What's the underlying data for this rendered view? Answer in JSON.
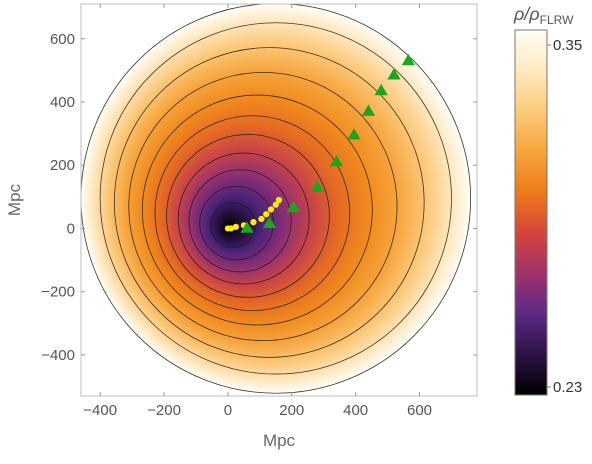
{
  "chart_data": {
    "type": "heatmap",
    "xlabel": "Mpc",
    "ylabel": "Mpc",
    "xlim": [
      -460,
      780
    ],
    "ylim": [
      -530,
      710
    ],
    "x_ticks": [
      -400,
      -200,
      0,
      200,
      400,
      600
    ],
    "x_tick_labels": [
      "−400",
      "−200",
      "0",
      "200",
      "400",
      "600"
    ],
    "y_ticks": [
      -400,
      -200,
      0,
      200,
      400,
      600
    ],
    "y_tick_labels": [
      "−400",
      "−200",
      "0",
      "200",
      "400",
      "600"
    ],
    "colorbar": {
      "title_main": "ρ/ρ",
      "title_sub": "FLRW",
      "min": 0.23,
      "max": 0.35,
      "min_label": "0.23",
      "max_label": "0.35"
    },
    "density_field": {
      "outer_center": [
        150,
        95
      ],
      "outer_radius": 610,
      "void_center": [
        0,
        0
      ],
      "contour_radii": [
        35,
        70,
        115,
        160,
        205,
        255,
        305,
        360,
        420,
        485,
        550
      ],
      "contour_centers_shift": 0.18,
      "colormap": [
        "#000000",
        "#2e1246",
        "#5b2a86",
        "#a0326b",
        "#d6453a",
        "#ee7a1a",
        "#f6a43c",
        "#fbcb7a",
        "#fee9c0",
        "#fffdf5"
      ]
    },
    "series": [
      {
        "marker": "circle",
        "color": "#ffee00",
        "x": [
          0,
          10,
          25,
          50,
          80,
          105,
          120,
          135,
          150,
          160
        ],
        "y": [
          0,
          0,
          5,
          10,
          20,
          30,
          45,
          60,
          75,
          90
        ]
      },
      {
        "marker": "triangle",
        "color": "#1aa81a",
        "x": [
          60,
          130,
          205,
          280,
          340,
          395,
          440,
          480,
          520,
          565
        ],
        "y": [
          0,
          15,
          65,
          130,
          210,
          295,
          370,
          435,
          485,
          530
        ]
      }
    ]
  }
}
